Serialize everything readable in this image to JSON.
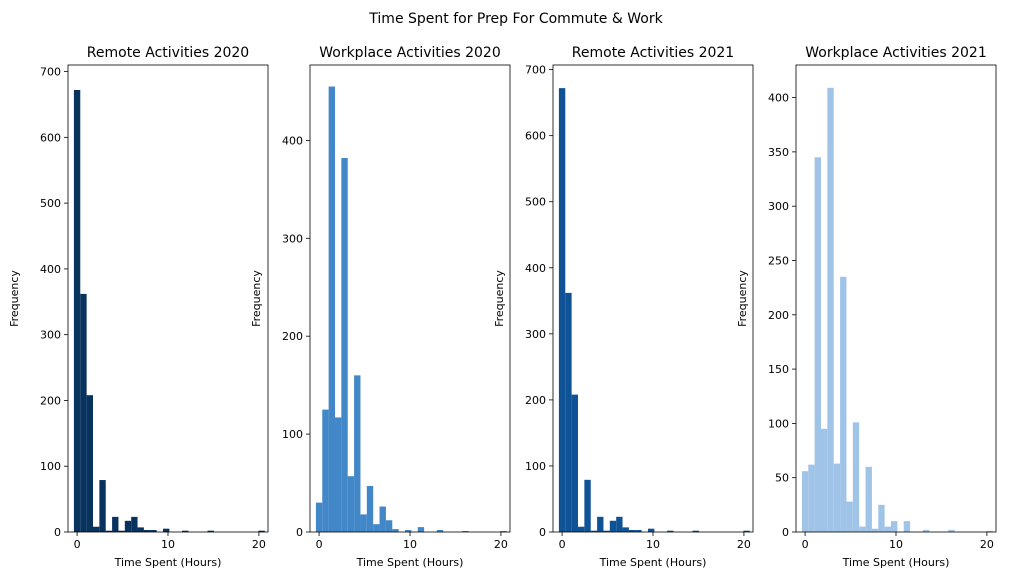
{
  "figure_title": "Time Spent for Prep For Commute & Work",
  "colors": {
    "remote_2020": "#08335e",
    "workplace_2020": "#4287c8",
    "remote_2021": "#0f5396",
    "workplace_2021": "#a0c4e8"
  },
  "chart_data": [
    {
      "type": "bar",
      "title": "Remote Activities 2020",
      "xlabel": "Time Spent (Hours)",
      "ylabel": "Frequency",
      "color": "#08335e",
      "xlim": [
        -1,
        21
      ],
      "ylim": [
        0,
        710
      ],
      "xticks": [
        0,
        10,
        20
      ],
      "yticks": [
        0,
        100,
        200,
        300,
        400,
        500,
        600,
        700
      ],
      "bin_width": 0.7,
      "x": [
        0,
        0.7,
        1.4,
        2.1,
        2.8,
        3.5,
        4.2,
        4.9,
        5.6,
        6.3,
        7,
        7.7,
        8.4,
        9.1,
        9.8,
        10.5,
        11.2,
        11.9,
        12.6,
        13.3,
        14,
        14.7,
        15.4,
        16.1,
        16.8,
        17.5,
        18.2,
        18.9,
        19.6,
        20.3
      ],
      "values": [
        672,
        362,
        208,
        8,
        79,
        2,
        23,
        2,
        17,
        23,
        7,
        3,
        3,
        0,
        5,
        0,
        0,
        2,
        0,
        0,
        0,
        2,
        0,
        0,
        0,
        0,
        0,
        0,
        0,
        2
      ]
    },
    {
      "type": "bar",
      "title": "Workplace Activities 2020",
      "xlabel": "Time Spent (Hours)",
      "ylabel": "Frequency",
      "color": "#4287c8",
      "xlim": [
        -1,
        21
      ],
      "ylim": [
        0,
        477
      ],
      "xticks": [
        0,
        10,
        20
      ],
      "yticks": [
        0,
        100,
        200,
        300,
        400
      ],
      "bin_width": 0.7,
      "x": [
        0,
        0.7,
        1.4,
        2.1,
        2.8,
        3.5,
        4.2,
        4.9,
        5.6,
        6.3,
        7,
        7.7,
        8.4,
        9.1,
        9.8,
        10.5,
        11.2,
        11.9,
        12.6,
        13.3,
        14,
        14.7,
        15.4,
        16.1,
        16.8,
        17.5,
        18.2,
        18.9,
        19.6,
        20.3
      ],
      "values": [
        30,
        125,
        455,
        117,
        382,
        57,
        160,
        18,
        47,
        8,
        26,
        12,
        3,
        0,
        2,
        0,
        5,
        0,
        0,
        2,
        0,
        0,
        0,
        1,
        0,
        0,
        0,
        0,
        0,
        1
      ]
    },
    {
      "type": "bar",
      "title": "Remote Activities 2021",
      "xlabel": "Time Spent (Hours)",
      "ylabel": "Frequency",
      "color": "#0f5396",
      "xlim": [
        -1,
        21
      ],
      "ylim": [
        0,
        707
      ],
      "xticks": [
        0,
        10,
        20
      ],
      "yticks": [
        0,
        100,
        200,
        300,
        400,
        500,
        600,
        700
      ],
      "bin_width": 0.7,
      "x": [
        0,
        0.7,
        1.4,
        2.1,
        2.8,
        3.5,
        4.2,
        4.9,
        5.6,
        6.3,
        7,
        7.7,
        8.4,
        9.1,
        9.8,
        10.5,
        11.2,
        11.9,
        12.6,
        13.3,
        14,
        14.7,
        15.4,
        16.1,
        16.8,
        17.5,
        18.2,
        18.9,
        19.6,
        20.3
      ],
      "values": [
        672,
        362,
        208,
        8,
        79,
        2,
        23,
        2,
        17,
        23,
        7,
        3,
        3,
        0,
        5,
        0,
        0,
        2,
        0,
        0,
        0,
        2,
        0,
        0,
        0,
        0,
        0,
        0,
        0,
        2
      ]
    },
    {
      "type": "bar",
      "title": "Workplace Activities 2021",
      "xlabel": "Time Spent (Hours)",
      "ylabel": "Frequency",
      "color": "#a0c4e8",
      "xlim": [
        -1,
        21
      ],
      "ylim": [
        0,
        430
      ],
      "xticks": [
        0,
        10,
        20
      ],
      "yticks": [
        0,
        50,
        100,
        150,
        200,
        250,
        300,
        350,
        400
      ],
      "bin_width": 0.7,
      "x": [
        0,
        0.7,
        1.4,
        2.1,
        2.8,
        3.5,
        4.2,
        4.9,
        5.6,
        6.3,
        7,
        7.7,
        8.4,
        9.1,
        9.8,
        10.5,
        11.2,
        11.9,
        12.6,
        13.3,
        14,
        14.7,
        15.4,
        16.1,
        16.8,
        17.5,
        18.2,
        18.9,
        19.6,
        20.3
      ],
      "values": [
        56,
        62,
        345,
        95,
        409,
        63,
        235,
        28,
        101,
        5,
        60,
        3,
        25,
        5,
        10,
        0,
        10,
        0,
        0,
        2,
        0,
        0,
        0,
        2,
        0,
        0,
        0,
        0,
        0,
        1
      ]
    }
  ]
}
